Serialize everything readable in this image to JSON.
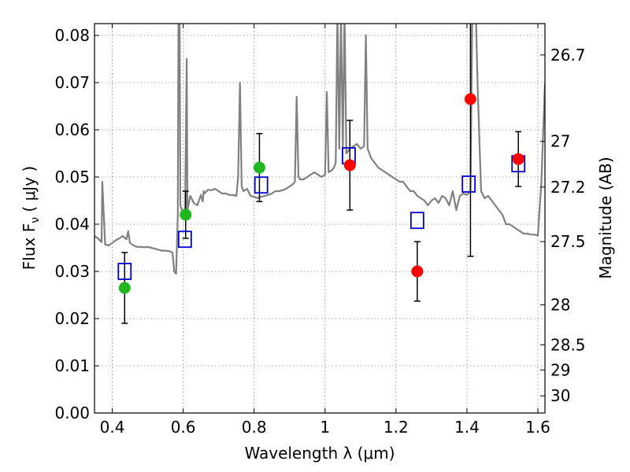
{
  "chart_data": {
    "type": "scatter",
    "xlabel": "Wavelength  λ (μm)",
    "ylabel": "Flux  F",
    "ylabel_sub": "ν",
    "ylabel_unit": " ( μJy )",
    "ylabel_right": "Magnitude (AB)",
    "xlim": [
      0.35,
      1.62
    ],
    "ylim": [
      0.0,
      0.0825
    ],
    "grid": true,
    "x_ticks": [
      0.4,
      0.6,
      0.8,
      1.0,
      1.2,
      1.4,
      1.6
    ],
    "x_tick_labels": [
      "0.4",
      "0.6",
      "0.8",
      "1",
      "1.2",
      "1.4",
      "1.6"
    ],
    "y_ticks": [
      0.0,
      0.01,
      0.02,
      0.03,
      0.04,
      0.05,
      0.06,
      0.07,
      0.08
    ],
    "y_tick_labels": [
      "0.00",
      "0.01",
      "0.02",
      "0.03",
      "0.04",
      "0.05",
      "0.06",
      "0.07",
      "0.08"
    ],
    "right_ticks": [
      {
        "mag": 26.7,
        "label": "26.7"
      },
      {
        "mag": 27.0,
        "label": "27"
      },
      {
        "mag": 27.2,
        "label": "27.2"
      },
      {
        "mag": 27.5,
        "label": "27.5"
      },
      {
        "mag": 28.0,
        "label": "28"
      },
      {
        "mag": 28.5,
        "label": "28.5"
      },
      {
        "mag": 29.0,
        "label": "29"
      },
      {
        "mag": 30.0,
        "label": "30"
      }
    ],
    "colors": {
      "spectrum": "#808080",
      "green": "#1fb81f",
      "red": "#ff0000",
      "model": "#0000cc",
      "errorbar": "#000000",
      "grid": "#888888"
    },
    "series": [
      {
        "kind": "line",
        "role": "spectrum",
        "x": [
          0.35,
          0.36,
          0.37,
          0.372,
          0.38,
          0.39,
          0.4,
          0.41,
          0.42,
          0.43,
          0.44,
          0.445,
          0.45,
          0.46,
          0.47,
          0.48,
          0.49,
          0.5,
          0.51,
          0.52,
          0.53,
          0.54,
          0.55,
          0.56,
          0.57,
          0.575,
          0.58,
          0.585,
          0.587,
          0.59,
          0.592,
          0.6,
          0.605,
          0.61,
          0.612,
          0.62,
          0.63,
          0.64,
          0.65,
          0.655,
          0.658,
          0.66,
          0.67,
          0.68,
          0.69,
          0.7,
          0.71,
          0.72,
          0.73,
          0.74,
          0.75,
          0.755,
          0.76,
          0.765,
          0.77,
          0.78,
          0.79,
          0.8,
          0.81,
          0.82,
          0.83,
          0.84,
          0.85,
          0.86,
          0.87,
          0.88,
          0.89,
          0.9,
          0.91,
          0.915,
          0.92,
          0.925,
          0.93,
          0.94,
          0.95,
          0.96,
          0.97,
          0.98,
          0.99,
          1.0,
          1.005,
          1.01,
          1.02,
          1.025,
          1.03,
          1.035,
          1.04,
          1.045,
          1.05,
          1.055,
          1.06,
          1.07,
          1.08,
          1.09,
          1.1,
          1.11,
          1.115,
          1.12,
          1.13,
          1.14,
          1.15,
          1.16,
          1.17,
          1.18,
          1.19,
          1.2,
          1.21,
          1.22,
          1.23,
          1.24,
          1.25,
          1.26,
          1.27,
          1.28,
          1.29,
          1.3,
          1.31,
          1.32,
          1.33,
          1.34,
          1.35,
          1.36,
          1.37,
          1.38,
          1.39,
          1.4,
          1.41,
          1.415,
          1.42,
          1.425,
          1.43,
          1.44,
          1.45,
          1.46,
          1.47,
          1.48,
          1.49,
          1.5,
          1.51,
          1.52,
          1.53,
          1.54,
          1.55,
          1.56,
          1.57,
          1.58,
          1.59,
          1.6,
          1.61,
          1.62
        ],
        "y": [
          0.0375,
          0.037,
          0.0362,
          0.049,
          0.0357,
          0.0355,
          0.036,
          0.0366,
          0.037,
          0.0375,
          0.0368,
          0.0385,
          0.036,
          0.0355,
          0.0352,
          0.0352,
          0.0351,
          0.0352,
          0.035,
          0.0348,
          0.0346,
          0.0344,
          0.0344,
          0.0343,
          0.034,
          0.03,
          0.0295,
          0.042,
          0.085,
          0.085,
          0.044,
          0.042,
          0.041,
          0.075,
          0.043,
          0.046,
          0.0445,
          0.044,
          0.0462,
          0.0448,
          0.047,
          0.0465,
          0.0473,
          0.0472,
          0.0475,
          0.047,
          0.0465,
          0.0465,
          0.0462,
          0.0462,
          0.046,
          0.05,
          0.07,
          0.048,
          0.047,
          0.0475,
          0.046,
          0.0458,
          0.0455,
          0.0458,
          0.046,
          0.0462,
          0.0465,
          0.047,
          0.047,
          0.0472,
          0.0475,
          0.048,
          0.0485,
          0.049,
          0.067,
          0.05,
          0.0495,
          0.0495,
          0.05,
          0.0505,
          0.051,
          0.0505,
          0.05,
          0.0505,
          0.068,
          0.051,
          0.0515,
          0.052,
          0.053,
          0.085,
          0.056,
          0.085,
          0.056,
          0.085,
          0.055,
          0.056,
          0.0565,
          0.057,
          0.056,
          0.0565,
          0.08,
          0.056,
          0.054,
          0.053,
          0.052,
          0.0515,
          0.051,
          0.0505,
          0.05,
          0.0495,
          0.049,
          0.049,
          0.048,
          0.047,
          0.047,
          0.046,
          0.0455,
          0.045,
          0.044,
          0.045,
          0.0455,
          0.0445,
          0.046,
          0.0455,
          0.044,
          0.047,
          0.043,
          0.046,
          0.0465,
          0.0462,
          0.047,
          0.085,
          0.085,
          0.085,
          0.07,
          0.047,
          0.0455,
          0.046,
          0.045,
          0.044,
          0.043,
          0.042,
          0.04,
          0.04,
          0.0395,
          0.039,
          0.0385,
          0.038,
          0.038,
          0.0378,
          0.0378,
          0.0376,
          0.049,
          0.07
        ]
      },
      {
        "kind": "scatter",
        "role": "green-observed",
        "marker": "circle",
        "x": [
          0.435,
          0.607,
          0.815
        ],
        "y": [
          0.0265,
          0.042,
          0.052
        ],
        "yerr": [
          0.0075,
          0.005,
          0.0072
        ]
      },
      {
        "kind": "scatter",
        "role": "red-observed",
        "marker": "circle",
        "x": [
          1.07,
          1.26,
          1.41,
          1.545
        ],
        "y": [
          0.0525,
          0.03,
          0.0665,
          0.0538
        ],
        "yerr": [
          0.0095,
          0.0063,
          0.0333,
          0.0058
        ]
      },
      {
        "kind": "scatter",
        "role": "model-squares",
        "marker": "open-square",
        "x": [
          0.435,
          0.605,
          0.82,
          1.067,
          1.26,
          1.405,
          1.545
        ],
        "y": [
          0.03,
          0.0368,
          0.0483,
          0.0545,
          0.0408,
          0.0485,
          0.0528
        ]
      }
    ]
  }
}
